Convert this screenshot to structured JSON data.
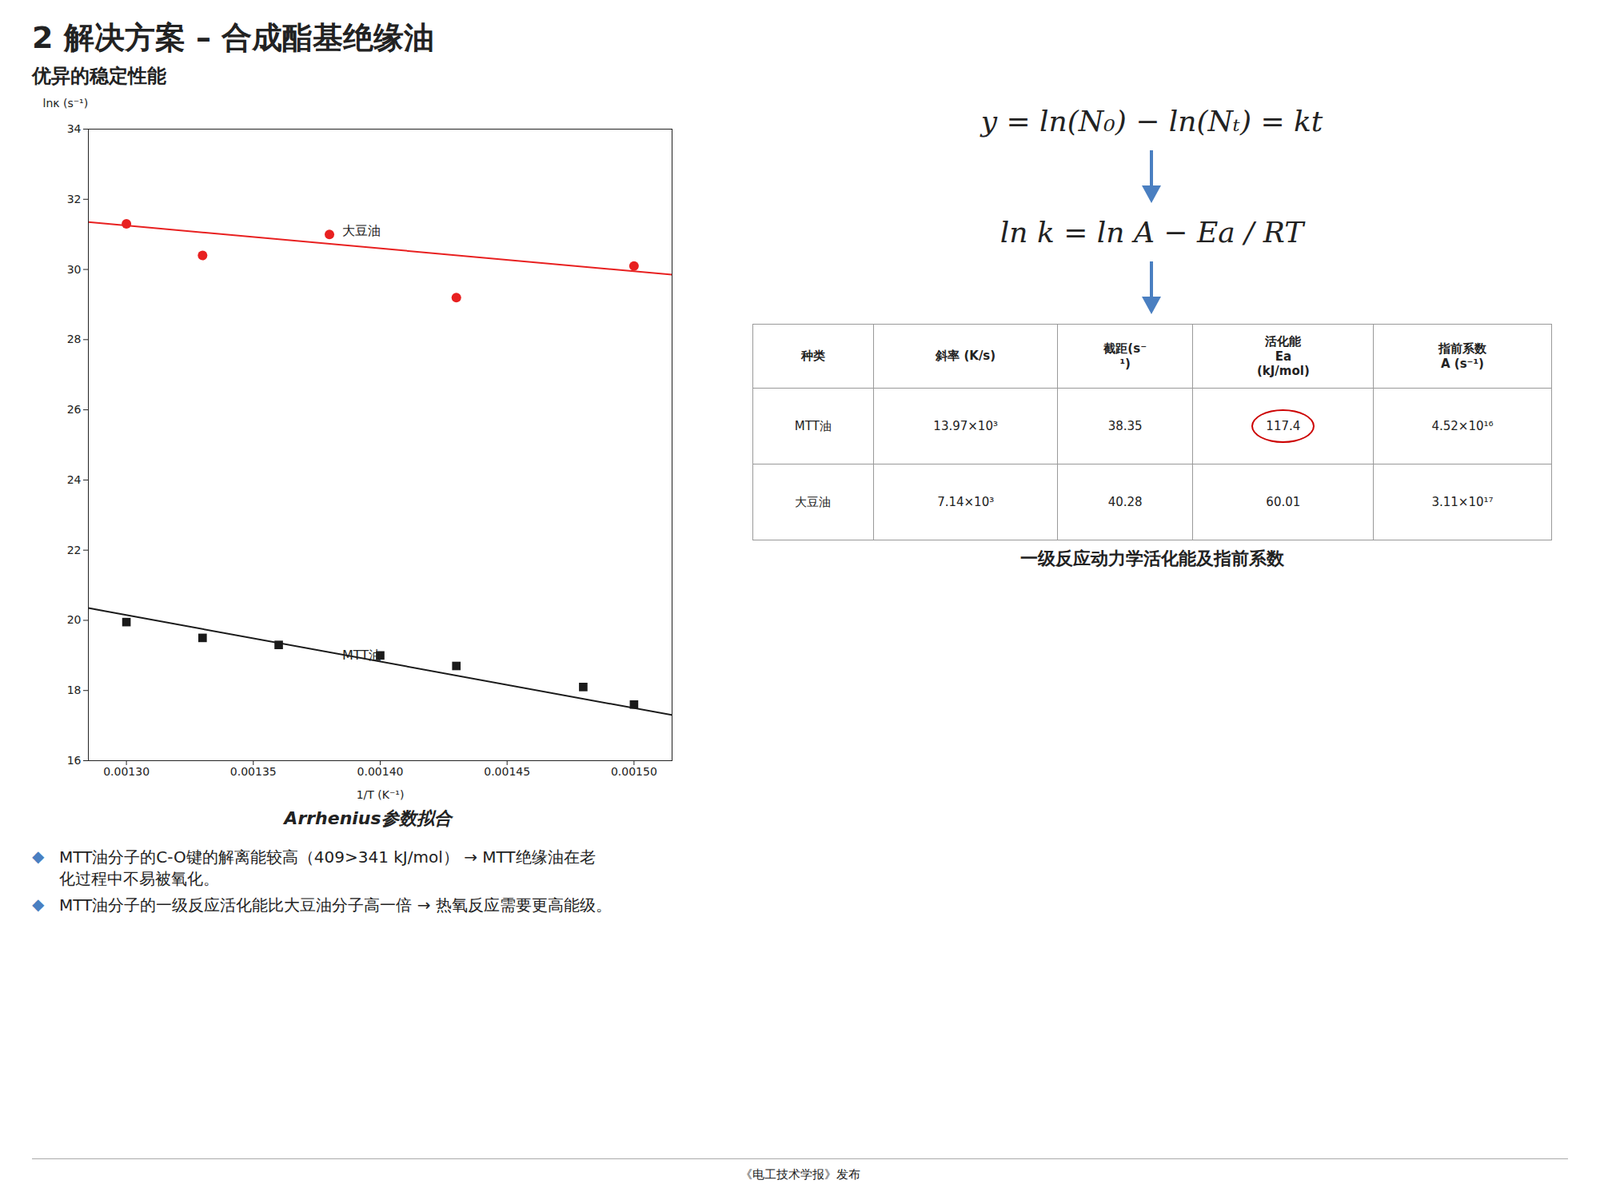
{
  "title": "2 解决方案 – 合成酯基绝缘油",
  "subtitle": "优异的稳定性能",
  "chart_data": {
    "type": "scatter",
    "xlabel": "1/T (K⁻¹)",
    "ylabel": "lnκ (s⁻¹)",
    "xlim": [
      0.001285,
      0.001515
    ],
    "ylim": [
      16,
      34
    ],
    "xticks": [
      {
        "value": 0.0013,
        "label": "0.00130"
      },
      {
        "value": 0.00135,
        "label": "0.00135"
      },
      {
        "value": 0.0014,
        "label": "0.00140"
      },
      {
        "value": 0.00145,
        "label": "0.00145"
      },
      {
        "value": 0.0015,
        "label": "0.00150"
      }
    ],
    "yticks": [
      16,
      18,
      20,
      22,
      24,
      26,
      28,
      30,
      32,
      34
    ],
    "grid": false,
    "series": [
      {
        "type": "scatter",
        "color": "#e82020",
        "marker": "circle",
        "x": [
          0.0013,
          0.00133,
          0.00138,
          0.00143,
          0.0015
        ],
        "values": [
          31.3,
          30.4,
          31.0,
          29.2,
          30.1
        ]
      },
      {
        "type": "line",
        "color": "#e82020",
        "line_style": "solid",
        "x": [
          0.001285,
          0.001515
        ],
        "values": [
          31.35,
          29.85
        ]
      },
      {
        "type": "scatter",
        "color": "#1a1a1a",
        "marker": "square",
        "x": [
          0.0013,
          0.00133,
          0.00136,
          0.0014,
          0.00143,
          0.00148,
          0.0015
        ],
        "values": [
          19.95,
          19.5,
          19.3,
          19.0,
          18.7,
          18.1,
          17.6
        ]
      },
      {
        "type": "line",
        "color": "#1a1a1a",
        "line_style": "solid",
        "x": [
          0.001285,
          0.001515
        ],
        "values": [
          20.35,
          17.3
        ]
      }
    ],
    "annotations": [
      {
        "text": "大豆油",
        "x": 0.001385,
        "y": 31.1
      },
      {
        "text": "MTT油",
        "x": 0.001385,
        "y": 19.0
      }
    ]
  },
  "equations": [
    "y = ln(N₀) − ln(Nₜ) = kt",
    "ln k = ln A − Ea / RT"
  ],
  "arrow_color": "#4a7fc1",
  "table": {
    "columns": [
      "种类",
      "斜率 (K/s)",
      "截距(s⁻\n¹)",
      "活化能\nEa\n(kJ/mol)",
      "指前系数\nA (s⁻¹)"
    ],
    "rows": [
      [
        "MTT油",
        "13.97×10³",
        "38.35",
        "117.4",
        "4.52×10¹⁶"
      ],
      [
        "大豆油",
        "7.14×10³",
        "40.28",
        "60.01",
        "3.11×10¹⁷"
      ]
    ],
    "highlight": {
      "row": 0,
      "column": 3,
      "color": "#cc0000"
    }
  },
  "caption_left": "Arrhenius参数拟合",
  "caption_right": "一级反应动力学活化能及指前系数",
  "bullet_symbol": "◆",
  "bullets": [
    [
      "MTT油分子的C-O键的解离能较高（409>341 kJ/mol） → MTT绝缘油在老",
      "化过程中不易被氧化。"
    ],
    [
      "MTT油分子的一级反应活化能比大豆油分子高一倍 → 热氧反应需要更高能级。"
    ]
  ],
  "footer": "《电工技术学报》发布"
}
